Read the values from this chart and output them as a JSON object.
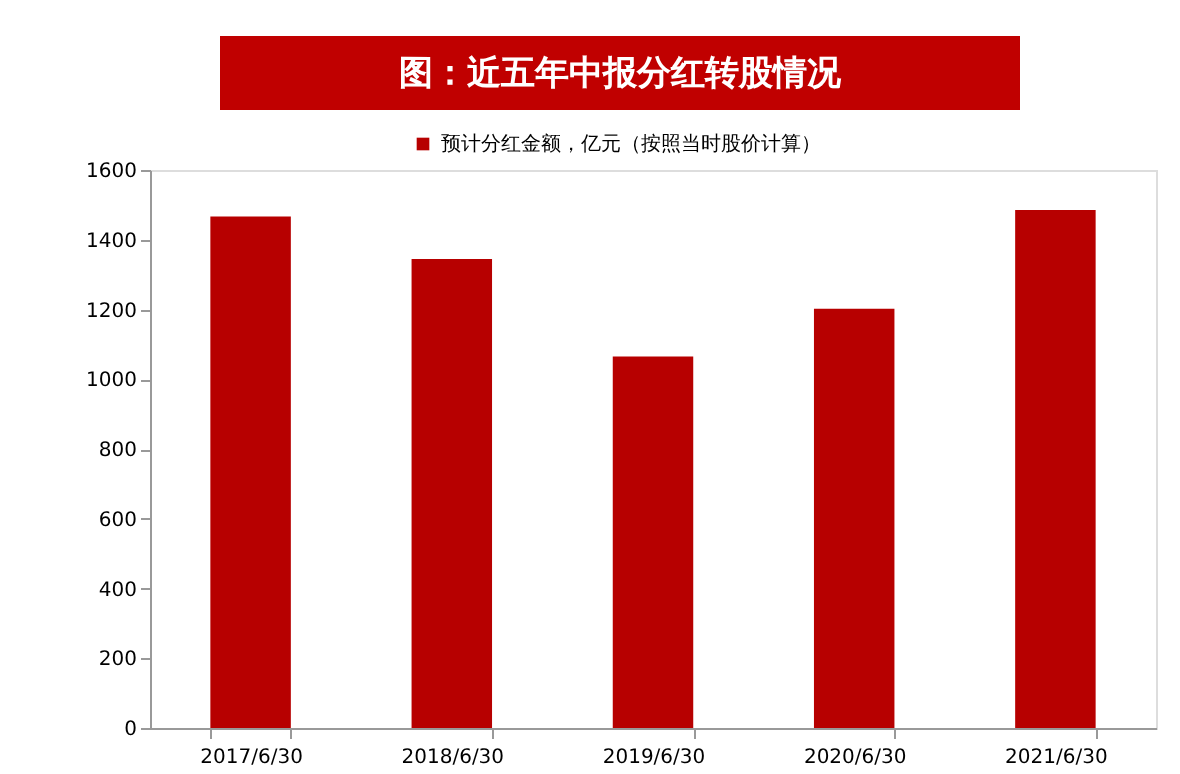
{
  "chart_data": {
    "type": "bar",
    "title": "图：近五年中报分红转股情况",
    "categories": [
      "2017/6/30",
      "2018/6/30",
      "2019/6/30",
      "2020/6/30",
      "2021/6/30"
    ],
    "series": [
      {
        "name": "预计分红金额，亿元（按照当时股价计算）",
        "color": "#b70000",
        "values": [
          1467,
          1345,
          1065,
          1202,
          1485
        ]
      }
    ],
    "ylim": [
      0,
      1600
    ],
    "yticks": [
      0,
      200,
      400,
      600,
      800,
      1000,
      1200,
      1400,
      1600
    ],
    "grid": false,
    "legend": "top"
  }
}
